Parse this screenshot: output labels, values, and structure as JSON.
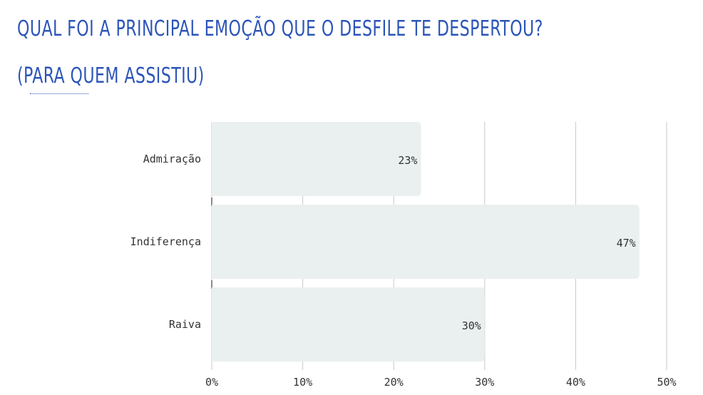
{
  "header": {
    "title_line1": "QUAL FOI A PRINCIPAL EMOÇÃO QUE O DESFILE TE DESPERTOU?",
    "title_line2": "(PARA QUEM ASSISTIU)"
  },
  "colors": {
    "title": "#2c55b8",
    "bar": "#eaf0ef",
    "grid": "#c8c8c8",
    "text": "#333333"
  },
  "chart_data": {
    "type": "bar",
    "orientation": "horizontal",
    "categories": [
      "Admiração",
      "Indiferença",
      "Raiva"
    ],
    "values": [
      23,
      47,
      30
    ],
    "value_labels": [
      "23%",
      "47%",
      "30%"
    ],
    "xlim": [
      0,
      50
    ],
    "xticks": [
      0,
      10,
      20,
      30,
      40,
      50
    ],
    "xtick_labels": [
      "0%",
      "10%",
      "20%",
      "30%",
      "40%",
      "50%"
    ],
    "grid": true,
    "legend": "none"
  }
}
